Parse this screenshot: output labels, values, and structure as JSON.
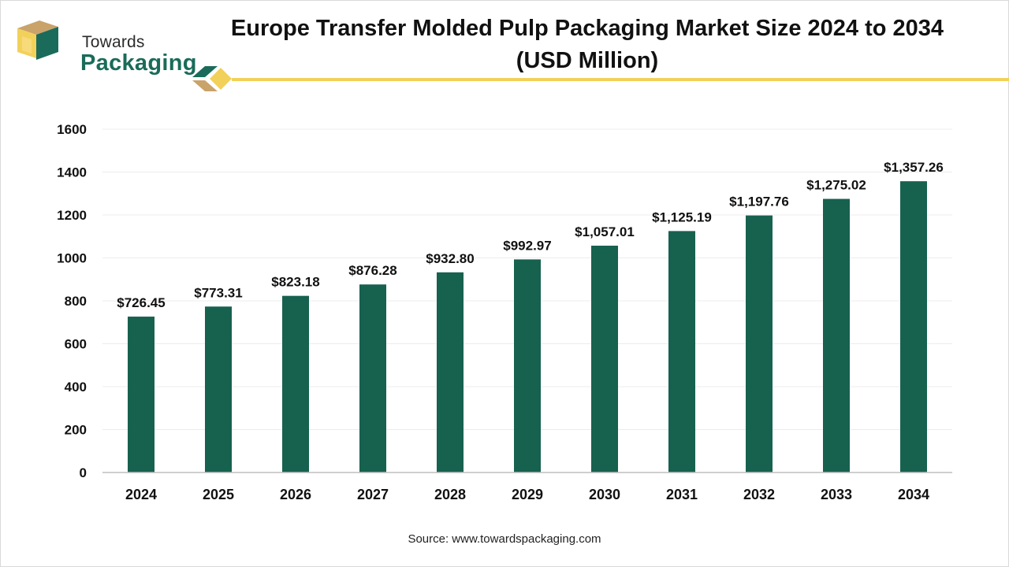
{
  "brand": {
    "line1": "Towards",
    "line2": "Packaging"
  },
  "colors": {
    "bar": "#17614f",
    "brand_green": "#1a6b5a",
    "gold": "#f2d15a",
    "tan": "#c9a36a"
  },
  "title_line1": "Europe Transfer Molded Pulp Packaging Market Size 2024 to 2034",
  "title_line2": "(USD Million)",
  "source": "Source: www.towardspackaging.com",
  "chart_data": {
    "type": "bar",
    "categories": [
      "2024",
      "2025",
      "2026",
      "2027",
      "2028",
      "2029",
      "2030",
      "2031",
      "2032",
      "2033",
      "2034"
    ],
    "values": [
      726.45,
      773.31,
      823.18,
      876.28,
      932.8,
      992.97,
      1057.01,
      1125.19,
      1197.76,
      1275.02,
      1357.26
    ],
    "value_labels": [
      "$726.45",
      "$773.31",
      "$823.18",
      "$876.28",
      "$932.80",
      "$992.97",
      "$1,057.01",
      "$1,125.19",
      "$1,197.76",
      "$1,275.02",
      "$1,357.26"
    ],
    "yticks": [
      "0",
      "200",
      "400",
      "600",
      "800",
      "1000",
      "1200",
      "1400",
      "1600"
    ],
    "ylim": [
      0,
      1600
    ],
    "grid": true,
    "legend": "none"
  }
}
